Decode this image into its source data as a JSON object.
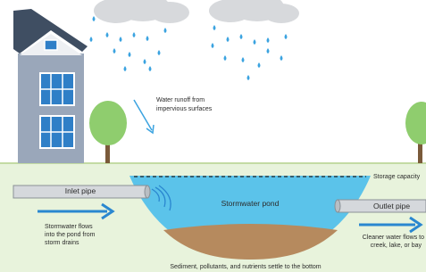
{
  "labels": {
    "runoff": [
      "Water runoff from",
      "impervious surfaces"
    ],
    "storage_capacity": "Storage capacity",
    "inlet_pipe": "Inlet pipe",
    "pond": "Stormwater pond",
    "outlet_pipe": "Outlet pipe",
    "inflow": [
      "Stormwater flows",
      "into the pond from",
      "storm drains"
    ],
    "outflow": [
      "Cleaner water flows to",
      "creek, lake, or bay"
    ],
    "sediment": "Sediment, pollutants, and nutrients settle to the bottom"
  }
}
